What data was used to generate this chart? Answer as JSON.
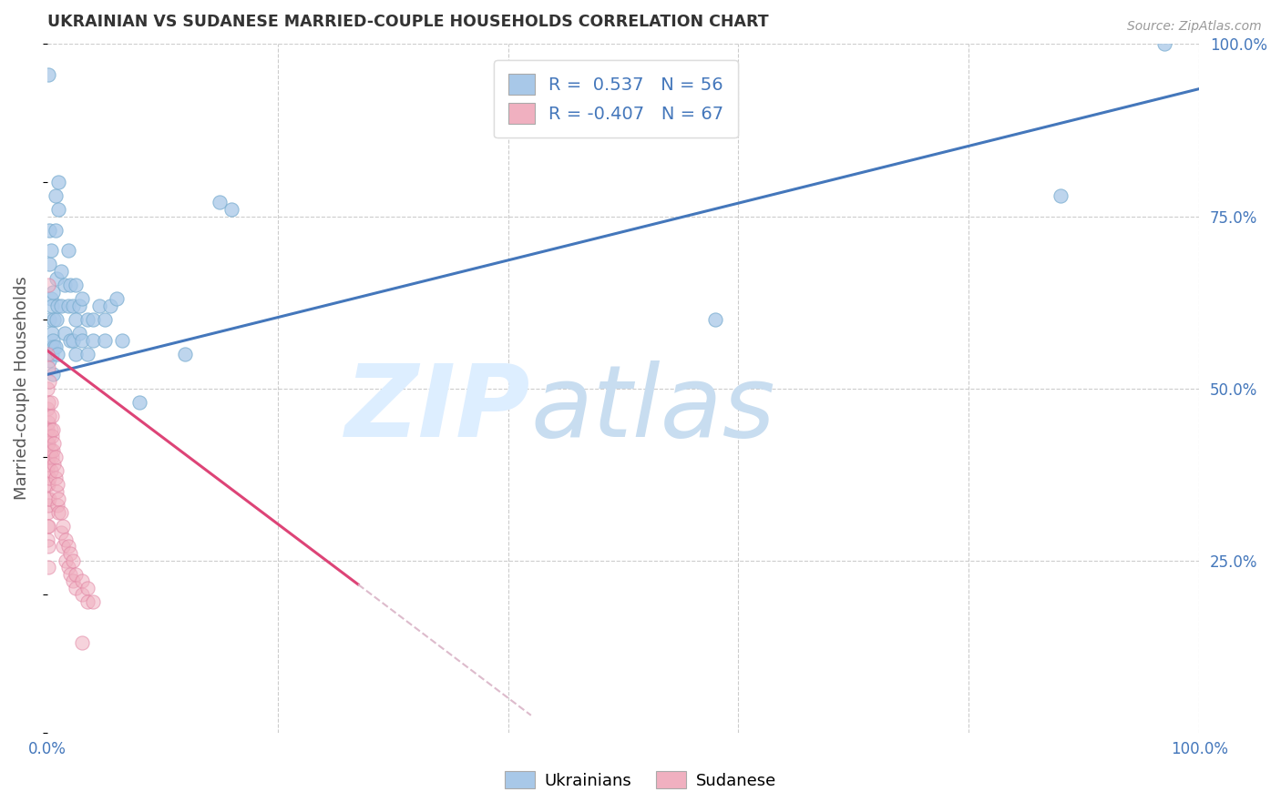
{
  "title": "UKRAINIAN VS SUDANESE MARRIED-COUPLE HOUSEHOLDS CORRELATION CHART",
  "source": "Source: ZipAtlas.com",
  "ylabel": "Married-couple Households",
  "xlim": [
    0,
    1.0
  ],
  "ylim": [
    0,
    1.0
  ],
  "blue_color": "#a8c8e8",
  "blue_edge_color": "#7aaed0",
  "pink_color": "#f0b0c0",
  "pink_edge_color": "#e080a0",
  "blue_line_color": "#4477bb",
  "pink_line_color": "#dd4477",
  "pink_dash_color": "#ddbbcc",
  "watermark_zip": "ZIP",
  "watermark_atlas": "atlas",
  "watermark_color": "#ddeeff",
  "axis_color": "#4477bb",
  "grid_color": "#cccccc",
  "blue_trendline": [
    [
      0.0,
      0.52
    ],
    [
      1.0,
      0.935
    ]
  ],
  "pink_trendline_solid": [
    [
      0.0,
      0.555
    ],
    [
      0.27,
      0.215
    ]
  ],
  "pink_trendline_dash": [
    [
      0.27,
      0.215
    ],
    [
      0.42,
      0.025
    ]
  ],
  "blue_scatter": [
    [
      0.001,
      0.955
    ],
    [
      0.002,
      0.54
    ],
    [
      0.002,
      0.6
    ],
    [
      0.002,
      0.68
    ],
    [
      0.002,
      0.73
    ],
    [
      0.003,
      0.56
    ],
    [
      0.003,
      0.63
    ],
    [
      0.003,
      0.7
    ],
    [
      0.004,
      0.55
    ],
    [
      0.004,
      0.62
    ],
    [
      0.004,
      0.58
    ],
    [
      0.005,
      0.57
    ],
    [
      0.005,
      0.64
    ],
    [
      0.005,
      0.52
    ],
    [
      0.006,
      0.6
    ],
    [
      0.006,
      0.56
    ],
    [
      0.007,
      0.78
    ],
    [
      0.007,
      0.73
    ],
    [
      0.007,
      0.56
    ],
    [
      0.008,
      0.66
    ],
    [
      0.008,
      0.6
    ],
    [
      0.009,
      0.62
    ],
    [
      0.009,
      0.55
    ],
    [
      0.01,
      0.8
    ],
    [
      0.01,
      0.76
    ],
    [
      0.012,
      0.67
    ],
    [
      0.012,
      0.62
    ],
    [
      0.015,
      0.58
    ],
    [
      0.015,
      0.65
    ],
    [
      0.018,
      0.7
    ],
    [
      0.018,
      0.62
    ],
    [
      0.02,
      0.65
    ],
    [
      0.02,
      0.57
    ],
    [
      0.022,
      0.62
    ],
    [
      0.022,
      0.57
    ],
    [
      0.025,
      0.6
    ],
    [
      0.025,
      0.55
    ],
    [
      0.025,
      0.65
    ],
    [
      0.028,
      0.58
    ],
    [
      0.028,
      0.62
    ],
    [
      0.03,
      0.57
    ],
    [
      0.03,
      0.63
    ],
    [
      0.035,
      0.55
    ],
    [
      0.035,
      0.6
    ],
    [
      0.04,
      0.57
    ],
    [
      0.04,
      0.6
    ],
    [
      0.045,
      0.62
    ],
    [
      0.05,
      0.57
    ],
    [
      0.05,
      0.6
    ],
    [
      0.055,
      0.62
    ],
    [
      0.06,
      0.63
    ],
    [
      0.065,
      0.57
    ],
    [
      0.08,
      0.48
    ],
    [
      0.12,
      0.55
    ],
    [
      0.15,
      0.77
    ],
    [
      0.16,
      0.76
    ],
    [
      0.58,
      0.6
    ],
    [
      0.88,
      0.78
    ],
    [
      0.97,
      1.0
    ]
  ],
  "pink_scatter": [
    [
      0.0005,
      0.55
    ],
    [
      0.0005,
      0.5
    ],
    [
      0.0005,
      0.47
    ],
    [
      0.0005,
      0.44
    ],
    [
      0.0005,
      0.42
    ],
    [
      0.0005,
      0.4
    ],
    [
      0.0005,
      0.38
    ],
    [
      0.0005,
      0.36
    ],
    [
      0.0005,
      0.34
    ],
    [
      0.0005,
      0.32
    ],
    [
      0.0005,
      0.3
    ],
    [
      0.0005,
      0.28
    ],
    [
      0.001,
      0.53
    ],
    [
      0.001,
      0.48
    ],
    [
      0.001,
      0.45
    ],
    [
      0.001,
      0.42
    ],
    [
      0.001,
      0.39
    ],
    [
      0.001,
      0.36
    ],
    [
      0.001,
      0.33
    ],
    [
      0.001,
      0.3
    ],
    [
      0.001,
      0.27
    ],
    [
      0.001,
      0.24
    ],
    [
      0.002,
      0.51
    ],
    [
      0.002,
      0.46
    ],
    [
      0.002,
      0.43
    ],
    [
      0.002,
      0.4
    ],
    [
      0.002,
      0.37
    ],
    [
      0.002,
      0.34
    ],
    [
      0.003,
      0.48
    ],
    [
      0.003,
      0.44
    ],
    [
      0.003,
      0.41
    ],
    [
      0.003,
      0.38
    ],
    [
      0.004,
      0.46
    ],
    [
      0.004,
      0.43
    ],
    [
      0.004,
      0.4
    ],
    [
      0.005,
      0.44
    ],
    [
      0.005,
      0.41
    ],
    [
      0.006,
      0.42
    ],
    [
      0.006,
      0.39
    ],
    [
      0.007,
      0.4
    ],
    [
      0.007,
      0.37
    ],
    [
      0.008,
      0.38
    ],
    [
      0.008,
      0.35
    ],
    [
      0.009,
      0.36
    ],
    [
      0.009,
      0.33
    ],
    [
      0.01,
      0.34
    ],
    [
      0.01,
      0.32
    ],
    [
      0.012,
      0.32
    ],
    [
      0.012,
      0.29
    ],
    [
      0.014,
      0.3
    ],
    [
      0.014,
      0.27
    ],
    [
      0.016,
      0.28
    ],
    [
      0.016,
      0.25
    ],
    [
      0.018,
      0.27
    ],
    [
      0.018,
      0.24
    ],
    [
      0.02,
      0.26
    ],
    [
      0.02,
      0.23
    ],
    [
      0.022,
      0.25
    ],
    [
      0.022,
      0.22
    ],
    [
      0.025,
      0.23
    ],
    [
      0.025,
      0.21
    ],
    [
      0.03,
      0.22
    ],
    [
      0.03,
      0.2
    ],
    [
      0.035,
      0.21
    ],
    [
      0.035,
      0.19
    ],
    [
      0.04,
      0.19
    ],
    [
      0.001,
      0.65
    ],
    [
      0.03,
      0.13
    ]
  ]
}
